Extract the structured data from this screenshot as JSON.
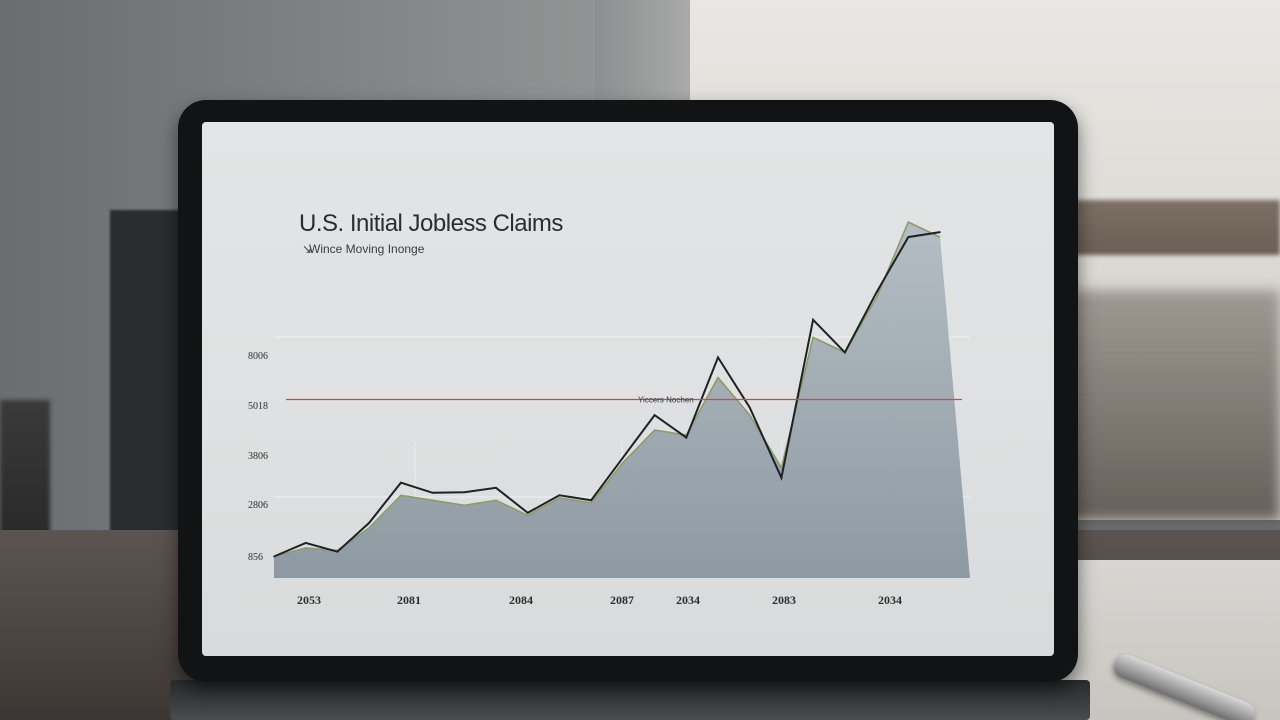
{
  "chart_data": {
    "type": "area",
    "title": "U.S. Initial Jobless Claims",
    "subtitle": "Wince Moving Inonge",
    "subtitle_arrow": "↘",
    "x": [
      0,
      1,
      2,
      3,
      4,
      5,
      6,
      7,
      8,
      9,
      10,
      11,
      12,
      13,
      14,
      15,
      16,
      17,
      18,
      19,
      20,
      21
    ],
    "x_tick_labels": [
      "2053",
      "2081",
      "2084",
      "2087",
      "2034",
      "2083",
      "2034"
    ],
    "y_tick_labels": [
      "856",
      "2806",
      "3806",
      "5018",
      "8006"
    ],
    "series": [
      {
        "values": [
          856,
          1400,
          1050,
          2200,
          3800,
          3400,
          3420,
          3600,
          2600,
          3300,
          3100,
          4800,
          6500,
          5600,
          8800,
          6800,
          4000,
          10300,
          9000,
          11400,
          13600,
          13800
        ]
      },
      {
        "values": [
          856,
          1200,
          1100,
          2000,
          3300,
          3100,
          2900,
          3100,
          2500,
          3200,
          3000,
          4600,
          5900,
          5700,
          8000,
          6500,
          4400,
          9600,
          9000,
          11200,
          14200,
          13600
        ]
      }
    ],
    "reference_line": {
      "label": "Yiccers Nochen",
      "value": 7000,
      "color": "#c8485a"
    },
    "grid": true,
    "colors": {
      "line": "#1e2226",
      "area": "#9aa5ad",
      "secondary_line": "#8f9a6a"
    }
  }
}
